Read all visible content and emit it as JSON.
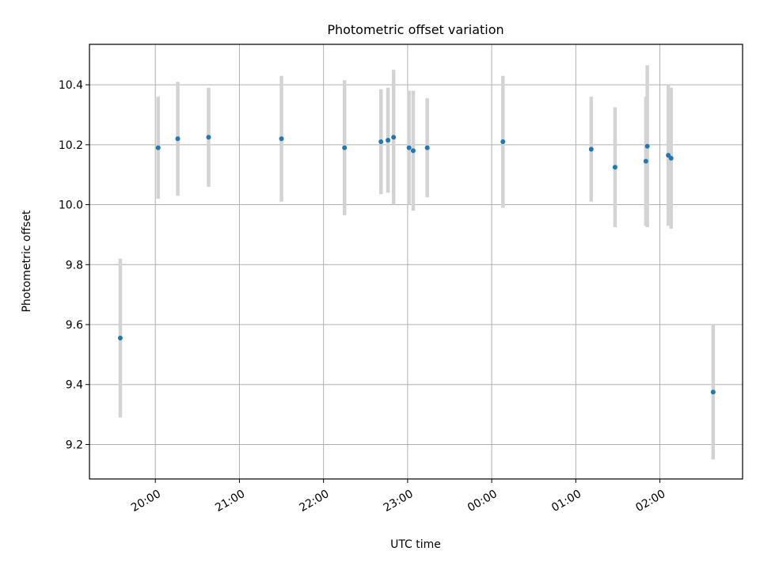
{
  "chart_data": {
    "type": "scatter",
    "title": "Photometric offset variation",
    "xlabel": "UTC time",
    "ylabel": "Photometric offset",
    "x_ticks": [
      "20:00",
      "21:00",
      "22:00",
      "23:00",
      "00:00",
      "01:00",
      "02:00"
    ],
    "y_ticks": [
      "9.2",
      "9.4",
      "9.6",
      "9.8",
      "10.0",
      "10.2",
      "10.4"
    ],
    "xlim": [
      "19:13",
      "02:59"
    ],
    "ylim": [
      9.085,
      10.535
    ],
    "grid": true,
    "points": [
      {
        "x": "19:35",
        "y": 9.555,
        "err": 0.265
      },
      {
        "x": "20:02",
        "y": 10.19,
        "err": 0.17
      },
      {
        "x": "20:16",
        "y": 10.22,
        "err": 0.19
      },
      {
        "x": "20:38",
        "y": 10.225,
        "err": 0.165
      },
      {
        "x": "21:30",
        "y": 10.22,
        "err": 0.21
      },
      {
        "x": "22:15",
        "y": 10.19,
        "err": 0.225
      },
      {
        "x": "22:41",
        "y": 10.21,
        "err": 0.175
      },
      {
        "x": "22:46",
        "y": 10.215,
        "err": 0.175
      },
      {
        "x": "22:50",
        "y": 10.225,
        "err": 0.225
      },
      {
        "x": "23:01",
        "y": 10.19,
        "err": 0.19
      },
      {
        "x": "23:04",
        "y": 10.18,
        "err": 0.2
      },
      {
        "x": "23:14",
        "y": 10.19,
        "err": 0.165
      },
      {
        "x": "00:08",
        "y": 10.21,
        "err": 0.22
      },
      {
        "x": "01:11",
        "y": 10.185,
        "err": 0.175
      },
      {
        "x": "01:28",
        "y": 10.125,
        "err": 0.2
      },
      {
        "x": "01:50",
        "y": 10.145,
        "err": 0.215
      },
      {
        "x": "01:51",
        "y": 10.195,
        "err": 0.27
      },
      {
        "x": "02:06",
        "y": 10.165,
        "err": 0.235
      },
      {
        "x": "02:08",
        "y": 10.155,
        "err": 0.235
      },
      {
        "x": "02:38",
        "y": 9.375,
        "err": 0.225
      }
    ],
    "colors": {
      "point": "#1f77b4",
      "errorbar": "#d3d3d3",
      "grid": "#b0b0b0"
    }
  }
}
